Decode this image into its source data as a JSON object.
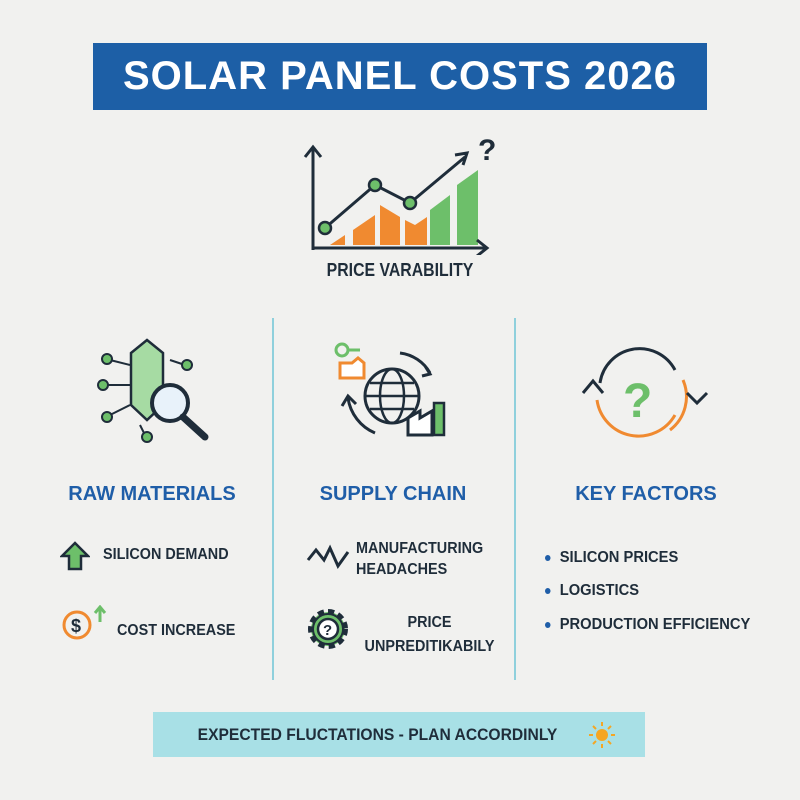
{
  "title": "SOLAR PANEL COSTS 2026",
  "chart_label": "PRICE VARABILITY",
  "columns": [
    {
      "heading": "RAW MATERIALS",
      "items": [
        "SILICON DEMAND",
        "COST INCREASE"
      ]
    },
    {
      "heading": "SUPPLY CHAIN",
      "items": [
        "MANUFACTURING HEADACHES",
        "PRICE UNPREDITIKABILY"
      ]
    },
    {
      "heading": "KEY FACTORS",
      "items": [
        "SILICON PRICES",
        "LOGISTICS",
        "PRODUCTION EFFICIENCY"
      ]
    }
  ],
  "banner": "EXPECTED FLUCTATIONS - PLAN ACCORDINLY",
  "colors": {
    "blue": "#1d5fa6",
    "green": "#6dbf6a",
    "orange": "#f08a30",
    "teal": "#8fd0dc"
  }
}
